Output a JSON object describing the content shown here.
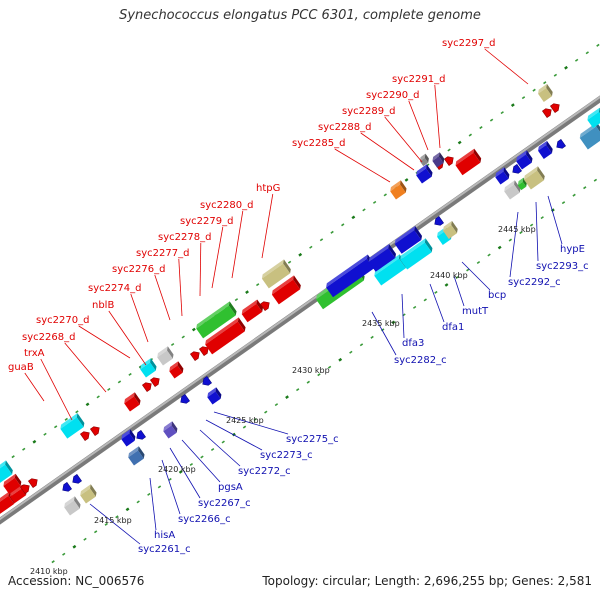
{
  "title": "Synechococcus elongatus PCC 6301, complete genome",
  "footer": {
    "accession": "Accession: NC_006576",
    "topology": "Topology: circular; Length: 2,696,255 bp; Genes: 2,581"
  },
  "colors": {
    "backbone": "#888888",
    "forward_gene": "#e00000",
    "reverse_gene": "#1010d0",
    "cyan_gene": "#00e0f0",
    "green_gene": "#30c030",
    "khaki_gene": "#c8c080",
    "gray_gene": "#c8c8c8",
    "tick_dot": "#208020",
    "forward_label": "#e00000",
    "reverse_label": "#1010b0"
  },
  "kbp_ticks": [
    "2410 kbp",
    "2415 kbp",
    "2420 kbp",
    "2425 kbp",
    "2430 kbp",
    "2435 kbp",
    "2440 kbp",
    "2445 kbp"
  ],
  "forward_labels": [
    "guaB",
    "trxA",
    "syc2268_d",
    "syc2270_d",
    "nblB",
    "syc2274_d",
    "syc2276_d",
    "syc2277_d",
    "syc2278_d",
    "syc2279_d",
    "syc2280_d",
    "htpG",
    "syc2285_d",
    "syc2288_d",
    "syc2289_d",
    "syc2290_d",
    "syc2291_d",
    "syc2297_d"
  ],
  "reverse_labels": [
    "syc2261_c",
    "hisA",
    "syc2266_c",
    "syc2267_c",
    "pgsA",
    "syc2272_c",
    "syc2273_c",
    "syc2275_c",
    "syc2282_c",
    "dfa3",
    "dfa1",
    "mutT",
    "bcp",
    "syc2292_c",
    "syc2293_c",
    "hypE"
  ]
}
